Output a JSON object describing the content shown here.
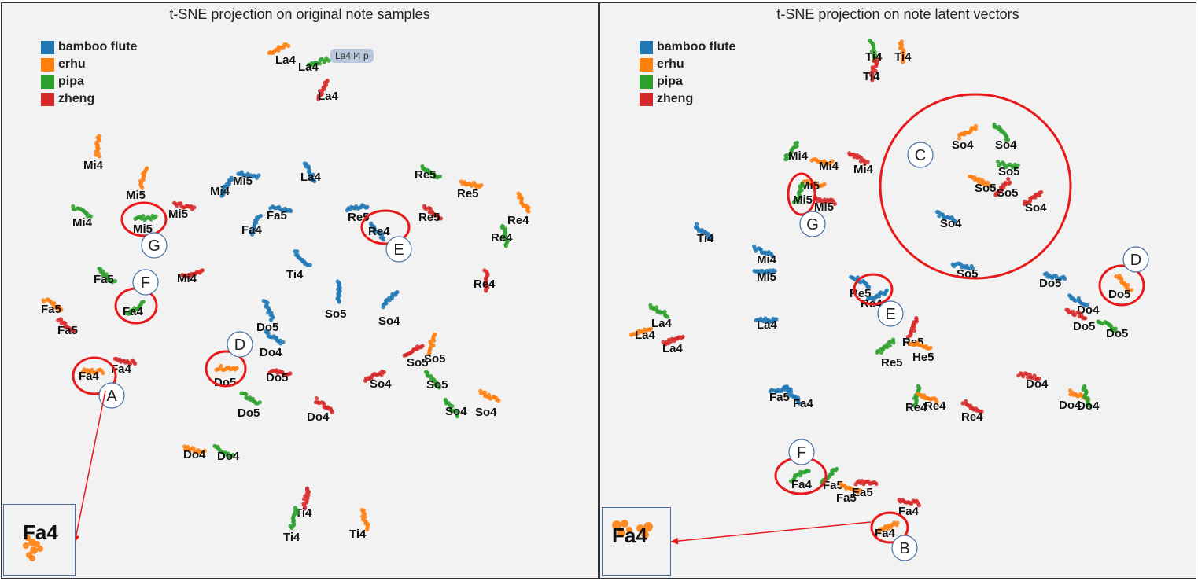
{
  "colors": {
    "bamboo_flute": "#1f77b4",
    "erhu": "#ff7f0e",
    "pipa": "#2ca02c",
    "zheng": "#d62728",
    "highlight": "#e8191b",
    "arrow": "#e8191b",
    "marker_stroke": "#4a6fa5"
  },
  "legend": [
    {
      "label": "bamboo flute",
      "key": "bamboo_flute"
    },
    {
      "label": "erhu",
      "key": "erhu"
    },
    {
      "label": "pipa",
      "key": "pipa"
    },
    {
      "label": "zheng",
      "key": "zheng"
    }
  ],
  "chart_data": [
    {
      "type": "scatter",
      "title": "t-SNE projection on original note samples",
      "tooltip": "La4 l4 p",
      "inset_label": "Fa4",
      "clusters": [
        {
          "label": "La4",
          "instrument": "erhu"
        },
        {
          "label": "La4",
          "instrument": "pipa"
        },
        {
          "label": "La4",
          "instrument": "zheng"
        },
        {
          "label": "Mi4",
          "instrument": "erhu"
        },
        {
          "label": "Mi5",
          "instrument": "erhu"
        },
        {
          "label": "Mi4",
          "instrument": "pipa"
        },
        {
          "label": "Mi5",
          "instrument": "pipa"
        },
        {
          "label": "Mi5",
          "instrument": "zheng"
        },
        {
          "label": "Mi4",
          "instrument": "bamboo_flute"
        },
        {
          "label": "Mi5",
          "instrument": "bamboo_flute"
        },
        {
          "label": "La4",
          "instrument": "bamboo_flute"
        },
        {
          "label": "Fa5",
          "instrument": "bamboo_flute"
        },
        {
          "label": "Fa4",
          "instrument": "bamboo_flute"
        },
        {
          "label": "Re5",
          "instrument": "pipa"
        },
        {
          "label": "Re5",
          "instrument": "erhu"
        },
        {
          "label": "Re5",
          "instrument": "bamboo_flute"
        },
        {
          "label": "Re4",
          "instrument": "bamboo_flute"
        },
        {
          "label": "Re5",
          "instrument": "zheng"
        },
        {
          "label": "Re4",
          "instrument": "erhu"
        },
        {
          "label": "Re4",
          "instrument": "pipa"
        },
        {
          "label": "Re4",
          "instrument": "zheng"
        },
        {
          "label": "Fa5",
          "instrument": "pipa"
        },
        {
          "label": "Mi4",
          "instrument": "zheng"
        },
        {
          "label": "Fa4",
          "instrument": "pipa"
        },
        {
          "label": "Fa5",
          "instrument": "erhu"
        },
        {
          "label": "Fa5",
          "instrument": "zheng"
        },
        {
          "label": "Ti4",
          "instrument": "bamboo_flute"
        },
        {
          "label": "So5",
          "instrument": "bamboo_flute"
        },
        {
          "label": "So4",
          "instrument": "bamboo_flute"
        },
        {
          "label": "Do5",
          "instrument": "bamboo_flute"
        },
        {
          "label": "Do4",
          "instrument": "bamboo_flute"
        },
        {
          "label": "Fa4",
          "instrument": "zheng"
        },
        {
          "label": "Fa4",
          "instrument": "erhu"
        },
        {
          "label": "Do5",
          "instrument": "erhu"
        },
        {
          "label": "Do5",
          "instrument": "zheng"
        },
        {
          "label": "Do5",
          "instrument": "pipa"
        },
        {
          "label": "Do4",
          "instrument": "zheng"
        },
        {
          "label": "So5",
          "instrument": "erhu"
        },
        {
          "label": "So5",
          "instrument": "zheng"
        },
        {
          "label": "So4",
          "instrument": "zheng"
        },
        {
          "label": "So5",
          "instrument": "pipa"
        },
        {
          "label": "So4",
          "instrument": "pipa"
        },
        {
          "label": "So4",
          "instrument": "erhu"
        },
        {
          "label": "Do4",
          "instrument": "erhu"
        },
        {
          "label": "Do4",
          "instrument": "pipa"
        },
        {
          "label": "Ti4",
          "instrument": "zheng"
        },
        {
          "label": "Ti4",
          "instrument": "pipa"
        },
        {
          "label": "Ti4",
          "instrument": "erhu"
        }
      ],
      "markers": [
        "A",
        "D",
        "E",
        "F",
        "G"
      ]
    },
    {
      "type": "scatter",
      "title": "t-SNE projection on note latent vectors",
      "inset_label": "Fa4",
      "clusters": [
        {
          "label": "Ti4",
          "instrument": "pipa"
        },
        {
          "label": "Ti4",
          "instrument": "erhu"
        },
        {
          "label": "Ti4",
          "instrument": "zheng"
        },
        {
          "label": "Mi4",
          "instrument": "pipa"
        },
        {
          "label": "Mi4",
          "instrument": "erhu"
        },
        {
          "label": "Mi4",
          "instrument": "zheng"
        },
        {
          "label": "Mi5",
          "instrument": "erhu"
        },
        {
          "label": "Mi5",
          "instrument": "pipa"
        },
        {
          "label": "Mi5",
          "instrument": "zheng"
        },
        {
          "label": "So4",
          "instrument": "erhu"
        },
        {
          "label": "So4",
          "instrument": "pipa"
        },
        {
          "label": "So5",
          "instrument": "pipa"
        },
        {
          "label": "So5",
          "instrument": "erhu"
        },
        {
          "label": "So5",
          "instrument": "zheng"
        },
        {
          "label": "So4",
          "instrument": "zheng"
        },
        {
          "label": "So4",
          "instrument": "bamboo_flute"
        },
        {
          "label": "So5",
          "instrument": "bamboo_flute"
        },
        {
          "label": "Ti4",
          "instrument": "bamboo_flute"
        },
        {
          "label": "Mi4",
          "instrument": "bamboo_flute"
        },
        {
          "label": "Mi5",
          "instrument": "bamboo_flute"
        },
        {
          "label": "La4",
          "instrument": "bamboo_flute"
        },
        {
          "label": "La4",
          "instrument": "pipa"
        },
        {
          "label": "La4",
          "instrument": "erhu"
        },
        {
          "label": "La4",
          "instrument": "zheng"
        },
        {
          "label": "Re5",
          "instrument": "bamboo_flute"
        },
        {
          "label": "Re4",
          "instrument": "bamboo_flute"
        },
        {
          "label": "Re5",
          "instrument": "zheng"
        },
        {
          "label": "Re5",
          "instrument": "pipa"
        },
        {
          "label": "He5",
          "instrument": "erhu"
        },
        {
          "label": "Do5",
          "instrument": "bamboo_flute"
        },
        {
          "label": "Do5",
          "instrument": "erhu"
        },
        {
          "label": "Do4",
          "instrument": "bamboo_flute"
        },
        {
          "label": "Do5",
          "instrument": "zheng"
        },
        {
          "label": "Do5",
          "instrument": "pipa"
        },
        {
          "label": "Do4",
          "instrument": "zheng"
        },
        {
          "label": "Do4",
          "instrument": "erhu"
        },
        {
          "label": "Do4",
          "instrument": "pipa"
        },
        {
          "label": "Fa5",
          "instrument": "bamboo_flute"
        },
        {
          "label": "Fa4",
          "instrument": "bamboo_flute"
        },
        {
          "label": "Re4",
          "instrument": "pipa"
        },
        {
          "label": "Re4",
          "instrument": "erhu"
        },
        {
          "label": "Re4",
          "instrument": "zheng"
        },
        {
          "label": "Fa4",
          "instrument": "pipa"
        },
        {
          "label": "Fa5",
          "instrument": "pipa"
        },
        {
          "label": "Fa5",
          "instrument": "erhu"
        },
        {
          "label": "Ea5",
          "instrument": "zheng"
        },
        {
          "label": "Fa4",
          "instrument": "zheng"
        },
        {
          "label": "Fa4",
          "instrument": "erhu"
        }
      ],
      "markers": [
        "B",
        "C",
        "D",
        "E",
        "F",
        "G"
      ]
    }
  ]
}
